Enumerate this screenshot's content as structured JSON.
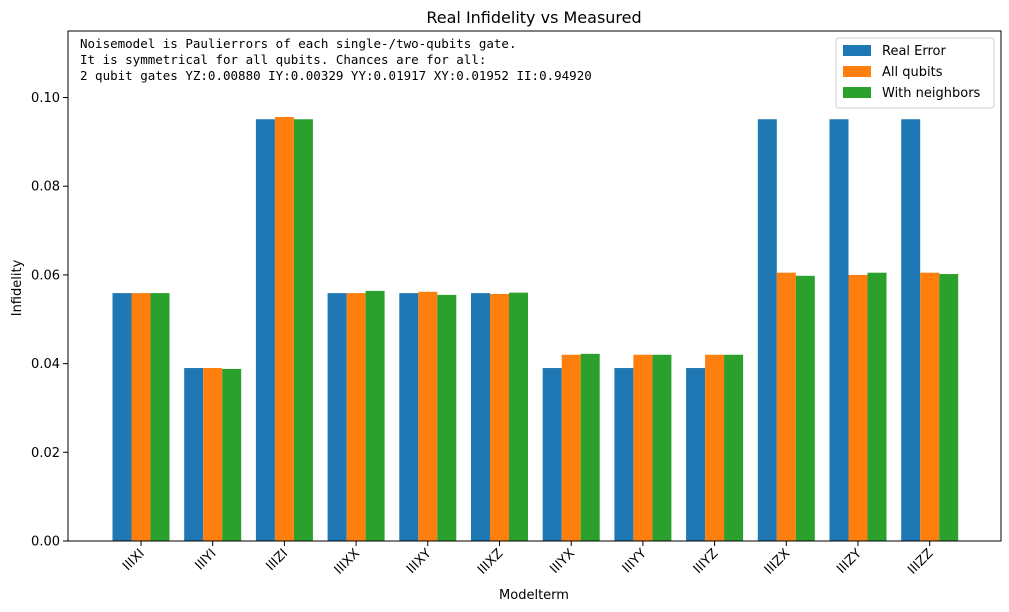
{
  "chart_data": {
    "type": "bar",
    "title": "Real Infidelity vs Measured",
    "xlabel": "Modelterm",
    "ylabel": "Infidelity",
    "ylim": [
      0,
      0.115
    ],
    "yticks": [
      "0.00",
      "0.02",
      "0.04",
      "0.06",
      "0.08",
      "0.10"
    ],
    "ytick_values": [
      0,
      0.02,
      0.04,
      0.06,
      0.08,
      0.1
    ],
    "categories": [
      "IIIXI",
      "IIIYI",
      "IIIZI",
      "IIIXX",
      "IIIXY",
      "IIIXZ",
      "IIIYX",
      "IIIYY",
      "IIIYZ",
      "IIIZX",
      "IIIZY",
      "IIIZZ"
    ],
    "series": [
      {
        "name": "Real Error",
        "color": "#1f77b4",
        "values": [
          0.0559,
          0.039,
          0.0951,
          0.0559,
          0.0559,
          0.0559,
          0.039,
          0.039,
          0.039,
          0.0951,
          0.0951,
          0.0951
        ]
      },
      {
        "name": "All qubits",
        "color": "#ff7f0e",
        "values": [
          0.0559,
          0.039,
          0.0956,
          0.0559,
          0.0562,
          0.0557,
          0.042,
          0.042,
          0.042,
          0.0605,
          0.06,
          0.0605
        ]
      },
      {
        "name": "With neighbors",
        "color": "#2ca02c",
        "values": [
          0.0559,
          0.0388,
          0.0951,
          0.0564,
          0.0555,
          0.056,
          0.0422,
          0.042,
          0.042,
          0.0598,
          0.0605,
          0.0602
        ]
      }
    ],
    "annotation": [
      "Noisemodel is Paulierrors of each single-/two-qubits gate.",
      "It is symmetrical for all qubits. Chances are for all:",
      "2 qubit gates YZ:0.00880   IY:0.00329   YY:0.01917   XY:0.01952   II:0.94920"
    ],
    "legend_position": "top-right",
    "grid": false
  }
}
